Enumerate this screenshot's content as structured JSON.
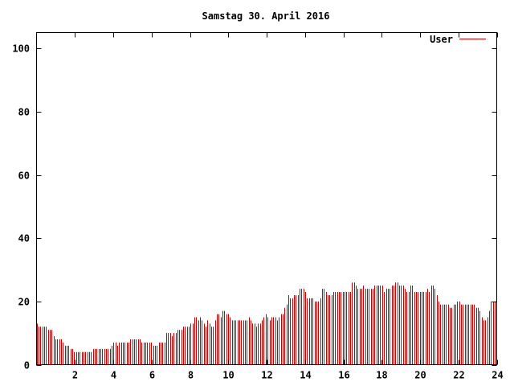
{
  "chart_data": {
    "type": "bar",
    "title": "Samstag 30. April 2016",
    "xlabel": "",
    "ylabel": "",
    "xlim": [
      0,
      24
    ],
    "ylim": [
      0,
      105
    ],
    "xticks": [
      2,
      4,
      6,
      8,
      10,
      12,
      14,
      16,
      18,
      20,
      22,
      24
    ],
    "yticks": [
      0,
      20,
      40,
      60,
      80,
      100
    ],
    "grid": false,
    "legend_position": "top-right",
    "series": [
      {
        "name": "User",
        "color": "#cc0000",
        "values": [
          13,
          12,
          12,
          12,
          12,
          12,
          11,
          11,
          11,
          9,
          8,
          8,
          8,
          8,
          7,
          6,
          6,
          6,
          5,
          5,
          4,
          4,
          4,
          4,
          4,
          4,
          4,
          4,
          4,
          4,
          5,
          5,
          5,
          5,
          5,
          5,
          5,
          5,
          5,
          5,
          6,
          7,
          7,
          6,
          7,
          7,
          7,
          7,
          7,
          7,
          8,
          8,
          8,
          8,
          8,
          8,
          7,
          7,
          7,
          7,
          7,
          7,
          6,
          6,
          6,
          7,
          7,
          7,
          7,
          10,
          10,
          10,
          9,
          10,
          10,
          11,
          11,
          11,
          12,
          12,
          12,
          12,
          13,
          13,
          15,
          15,
          14,
          15,
          14,
          13,
          12,
          14,
          13,
          12,
          12,
          14,
          16,
          16,
          15,
          17,
          17,
          16,
          16,
          15,
          14,
          14,
          14,
          14,
          14,
          14,
          14,
          14,
          14,
          15,
          14,
          13,
          13,
          12,
          13,
          13,
          14,
          15,
          16,
          15,
          14,
          15,
          15,
          15,
          14,
          15,
          16,
          16,
          18,
          19,
          22,
          21,
          21,
          22,
          22,
          22,
          24,
          24,
          24,
          23,
          21,
          21,
          21,
          21,
          20,
          20,
          20,
          21,
          24,
          24,
          23,
          22,
          22,
          22,
          23,
          23,
          23,
          23,
          23,
          23,
          23,
          23,
          23,
          23,
          26,
          26,
          25,
          24,
          24,
          24,
          25,
          24,
          24,
          24,
          24,
          24,
          25,
          25,
          25,
          25,
          25,
          23,
          24,
          24,
          24,
          25,
          25,
          26,
          26,
          25,
          25,
          25,
          24,
          23,
          23,
          25,
          25,
          23,
          23,
          23,
          23,
          23,
          23,
          23,
          24,
          23,
          25,
          25,
          24,
          22,
          20,
          19,
          19,
          19,
          19,
          19,
          18,
          18,
          19,
          19,
          20,
          20,
          19,
          19,
          19,
          19,
          19,
          19,
          19,
          19,
          18,
          18,
          17,
          15,
          14,
          14,
          15,
          17,
          20,
          20,
          20
        ]
      }
    ]
  }
}
